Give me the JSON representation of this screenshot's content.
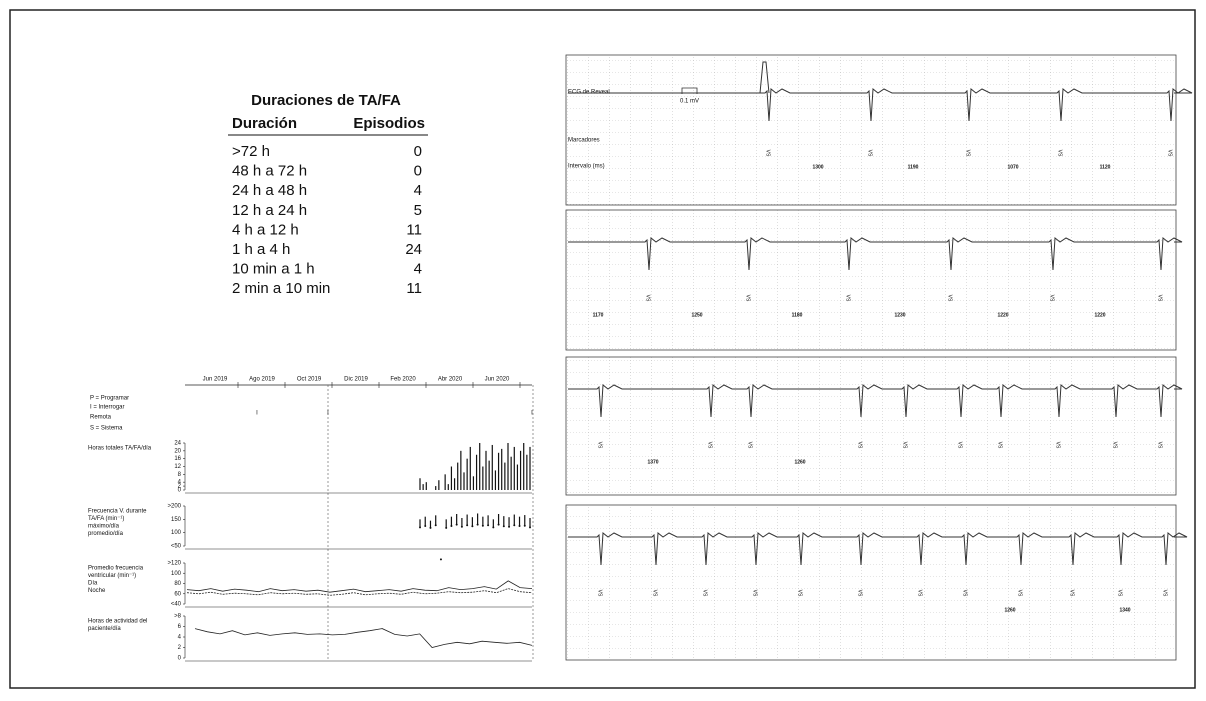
{
  "table": {
    "title": "Duraciones de TA/FA",
    "headers": [
      "Duración",
      "Episodios"
    ],
    "rows": [
      [
        ">72 h",
        0
      ],
      [
        "48 h a 72 h",
        0
      ],
      [
        "24 h a 48 h",
        4
      ],
      [
        "12 h a 24 h",
        5
      ],
      [
        "4 h a 12 h",
        11
      ],
      [
        "1 h a 4 h",
        24
      ],
      [
        "10 min a 1 h",
        4
      ],
      [
        "2 min a 10 min",
        11
      ]
    ]
  },
  "trend": {
    "months": [
      "Jun 2019",
      "Ago 2019",
      "Oct 2019",
      "Dic 2019",
      "Feb 2020",
      "Abr 2020",
      "Jun 2020"
    ],
    "legend": [
      "P = Programar",
      "I = Interrogar",
      "Remota",
      "S = Sistema"
    ],
    "interrogate_mark": "I",
    "panels": [
      {
        "label": [
          "Horas totales TA/FA/día"
        ],
        "ylim": [
          0,
          24
        ],
        "yticks": [
          0,
          2,
          4,
          8,
          12,
          16,
          20,
          24
        ],
        "values": [
          6,
          3,
          4,
          0,
          0,
          2,
          5,
          0,
          8,
          3,
          12,
          6,
          14,
          20,
          9,
          16,
          22,
          7,
          18,
          24,
          12,
          20,
          15,
          23,
          10,
          19,
          21,
          14,
          24,
          17,
          22,
          13,
          20,
          24,
          18,
          22
        ]
      },
      {
        "label": [
          "Frecuencia V. durante",
          "TA/FA (min⁻¹)",
          "máximo/día",
          "promedio/día"
        ],
        "ylim": [
          50,
          200
        ],
        "yticks": [
          {
            "value": 50,
            "label": "<50"
          },
          100,
          150,
          {
            "value": 200,
            "label": ">200"
          }
        ],
        "max": [
          150,
          160,
          145,
          165,
          0,
          150,
          160,
          170,
          155,
          168,
          158,
          172,
          160,
          165,
          150,
          170,
          162,
          158,
          168,
          160,
          166,
          155
        ],
        "avg": [
          120,
          125,
          118,
          128,
          0,
          118,
          125,
          130,
          122,
          128,
          124,
          130,
          126,
          128,
          120,
          130,
          124,
          122,
          128,
          125,
          126,
          120
        ]
      },
      {
        "label": [
          "Promedio frecuencia",
          "ventricular (min⁻¹)",
          "Día",
          "Noche"
        ],
        "ylim": [
          40,
          120
        ],
        "yticks": [
          {
            "value": 40,
            "label": "<40"
          },
          60,
          80,
          100,
          {
            "value": 120,
            "label": ">120"
          }
        ],
        "day": [
          68,
          66,
          70,
          65,
          69,
          67,
          64,
          70,
          66,
          68,
          65,
          67,
          63,
          66,
          69,
          64,
          66,
          68,
          65,
          70,
          67,
          66,
          72,
          68,
          70,
          74,
          69,
          85,
          72,
          70
        ],
        "night": [
          62,
          60,
          63,
          59,
          61,
          60,
          58,
          62,
          60,
          61,
          59,
          60,
          57,
          59,
          62,
          58,
          60,
          61,
          59,
          63,
          60,
          61,
          64,
          62,
          63,
          66,
          62,
          70,
          64,
          62
        ]
      },
      {
        "label": [
          "Horas de actividad del",
          "paciente/día"
        ],
        "ylim": [
          0,
          8
        ],
        "yticks": [
          0,
          2,
          4,
          6,
          {
            "value": 8,
            "label": ">8"
          }
        ],
        "values": [
          5.6,
          5,
          4.6,
          5.2,
          4.4,
          4.8,
          4.3,
          4.6,
          4.8,
          4.5,
          4.6,
          4.4,
          4.5,
          4.9,
          5.2,
          5.6,
          4.5,
          4.2,
          4.6,
          2,
          2.6,
          3,
          2.7,
          3.2,
          3,
          2.8,
          3,
          2.4
        ]
      }
    ]
  },
  "ecg": {
    "labels": [
      "ECG de Reveal",
      "Marcadores",
      "Intervalo (ms)"
    ],
    "scale": "0.1 mV",
    "marker": "VS",
    "strips": [
      {
        "intervals": [
          1300,
          1190,
          1070,
          1120
        ]
      },
      {
        "intervals": [
          1170,
          1250,
          1180,
          1230,
          1220,
          1220
        ]
      },
      {
        "intervals": [
          1370,
          1260
        ]
      },
      {
        "intervals": [
          1260,
          1340
        ]
      }
    ]
  }
}
